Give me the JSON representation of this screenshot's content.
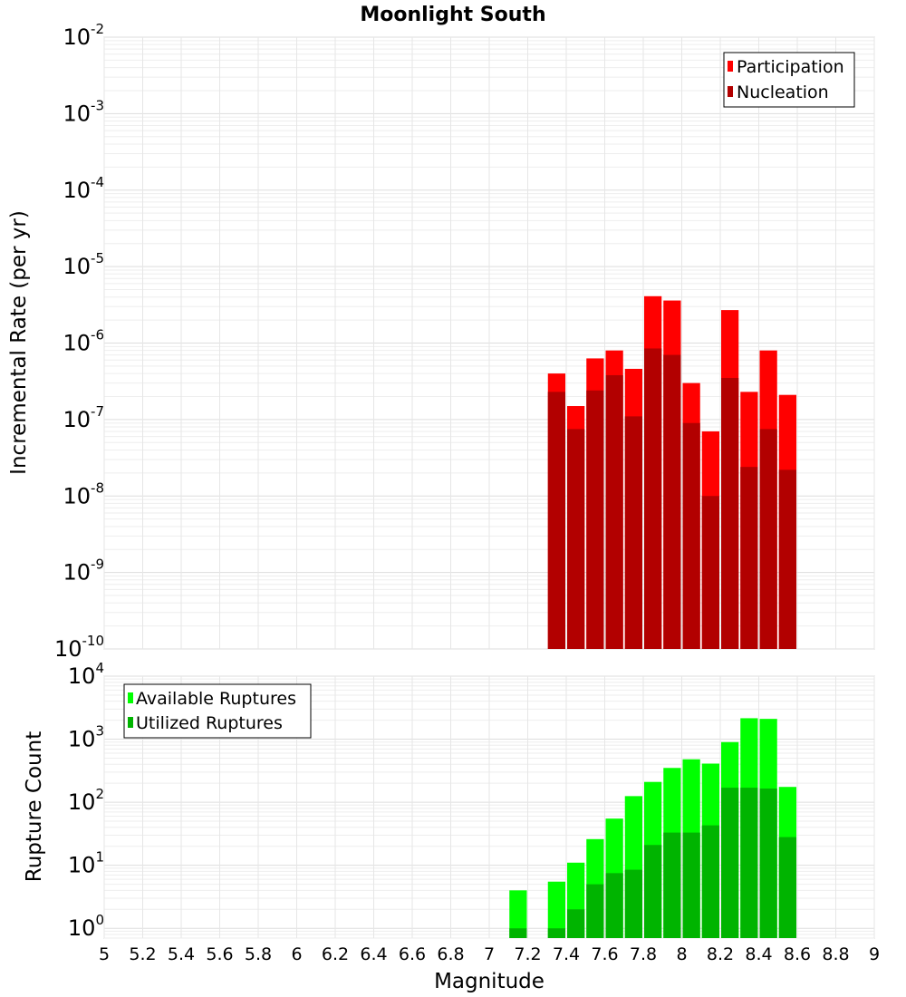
{
  "chart_data": [
    {
      "type": "bar",
      "title": "Moonlight South",
      "ylabel": "Incremental Rate (per yr)",
      "yscale": "log",
      "ylim": [
        1e-10,
        0.01
      ],
      "xlim": [
        5,
        9
      ],
      "grid": true,
      "legend": {
        "placement": "top-right"
      },
      "y_tick_labels": [
        {
          "base": "10",
          "exp": "-10"
        },
        {
          "base": "10",
          "exp": "-9"
        },
        {
          "base": "10",
          "exp": "-8"
        },
        {
          "base": "10",
          "exp": "-7"
        },
        {
          "base": "10",
          "exp": "-6"
        },
        {
          "base": "10",
          "exp": "-5"
        },
        {
          "base": "10",
          "exp": "-4"
        },
        {
          "base": "10",
          "exp": "-3"
        },
        {
          "base": "10",
          "exp": "-2"
        }
      ],
      "x": [
        7.35,
        7.45,
        7.55,
        7.65,
        7.75,
        7.85,
        7.95,
        8.05,
        8.15,
        8.25,
        8.35,
        8.45,
        8.55
      ],
      "bar_width": 0.1,
      "series": [
        {
          "name": "Participation",
          "color": "#ff0000",
          "values": [
            4e-07,
            1.5e-07,
            6.3e-07,
            8e-07,
            4.6e-07,
            4.1e-06,
            3.6e-06,
            3e-07,
            7e-08,
            2.7e-06,
            2.3e-07,
            8e-07,
            2.1e-07
          ]
        },
        {
          "name": "Nucleation",
          "color": "#b20000",
          "values": [
            2.3e-07,
            7.5e-08,
            2.4e-07,
            3.8e-07,
            1.1e-07,
            8.5e-07,
            7e-07,
            9e-08,
            1e-08,
            3.5e-07,
            2.4e-08,
            7.5e-08,
            2.2e-08
          ]
        }
      ]
    },
    {
      "type": "bar",
      "xlabel": "Magnitude",
      "ylabel": "Rupture Count",
      "yscale": "log",
      "ylim": [
        0.7,
        10000
      ],
      "xlim": [
        5,
        9
      ],
      "grid": true,
      "legend": {
        "placement": "top-left"
      },
      "x_tick_labels": [
        "5",
        "5.2",
        "5.4",
        "5.6",
        "5.8",
        "6",
        "6.2",
        "6.4",
        "6.6",
        "6.8",
        "7",
        "7.2",
        "7.4",
        "7.6",
        "7.8",
        "8",
        "8.2",
        "8.4",
        "8.6",
        "8.8",
        "9"
      ],
      "y_tick_labels": [
        {
          "base": "10",
          "exp": "0"
        },
        {
          "base": "10",
          "exp": "1"
        },
        {
          "base": "10",
          "exp": "2"
        },
        {
          "base": "10",
          "exp": "3"
        },
        {
          "base": "10",
          "exp": "4"
        }
      ],
      "x": [
        7.15,
        7.35,
        7.45,
        7.55,
        7.65,
        7.75,
        7.85,
        7.95,
        8.05,
        8.15,
        8.25,
        8.35,
        8.45,
        8.55
      ],
      "bar_width": 0.1,
      "series": [
        {
          "name": "Available Ruptures",
          "color": "#00ff00",
          "values": [
            4,
            5.5,
            11,
            26,
            55,
            125,
            210,
            350,
            480,
            410,
            900,
            2150,
            2100,
            175
          ]
        },
        {
          "name": "Utilized Ruptures",
          "color": "#00b400",
          "values": [
            1,
            1,
            2,
            5,
            7.5,
            8.5,
            21,
            33,
            33,
            43,
            170,
            170,
            165,
            28
          ]
        }
      ]
    }
  ]
}
